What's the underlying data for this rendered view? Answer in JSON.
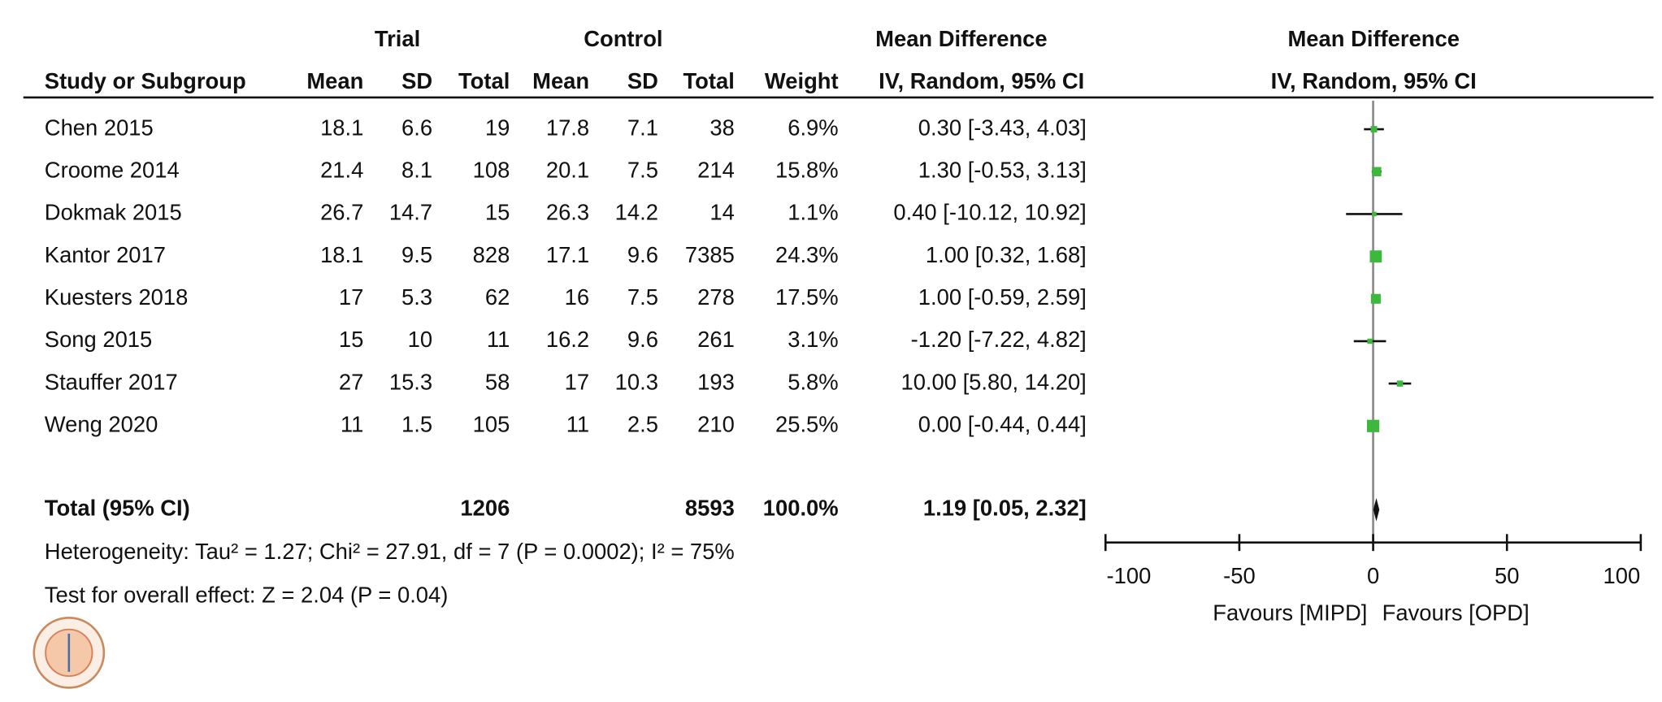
{
  "chart_data": {
    "type": "forest",
    "group_headers": {
      "trial": "Trial",
      "control": "Control",
      "effect_table": "Mean Difference",
      "effect_plot": "Mean Difference"
    },
    "columns": [
      "Study or Subgroup",
      "Mean",
      "SD",
      "Total",
      "Mean",
      "SD",
      "Total",
      "Weight",
      "IV, Random, 95% CI"
    ],
    "plot_method": "IV, Random, 95% CI",
    "studies": [
      {
        "name": "Chen 2015",
        "trial_mean": 18.1,
        "trial_sd": 6.6,
        "trial_total": 19,
        "control_mean": 17.8,
        "control_sd": 7.1,
        "control_total": 38,
        "weight": 6.9,
        "weight_label": "6.9%",
        "md": 0.3,
        "ci": [
          -3.43,
          4.03
        ],
        "ci_label": "0.30 [-3.43, 4.03]"
      },
      {
        "name": "Croome 2014",
        "trial_mean": 21.4,
        "trial_sd": 8.1,
        "trial_total": 108,
        "control_mean": 20.1,
        "control_sd": 7.5,
        "control_total": 214,
        "weight": 15.8,
        "weight_label": "15.8%",
        "md": 1.3,
        "ci": [
          -0.53,
          3.13
        ],
        "ci_label": "1.30 [-0.53, 3.13]"
      },
      {
        "name": "Dokmak 2015",
        "trial_mean": 26.7,
        "trial_sd": 14.7,
        "trial_total": 15,
        "control_mean": 26.3,
        "control_sd": 14.2,
        "control_total": 14,
        "weight": 1.1,
        "weight_label": "1.1%",
        "md": 0.4,
        "ci": [
          -10.12,
          10.92
        ],
        "ci_label": "0.40 [-10.12, 10.92]"
      },
      {
        "name": "Kantor 2017",
        "trial_mean": 18.1,
        "trial_sd": 9.5,
        "trial_total": 828,
        "control_mean": 17.1,
        "control_sd": 9.6,
        "control_total": 7385,
        "weight": 24.3,
        "weight_label": "24.3%",
        "md": 1.0,
        "ci": [
          0.32,
          1.68
        ],
        "ci_label": "1.00 [0.32, 1.68]"
      },
      {
        "name": "Kuesters 2018",
        "trial_mean": 17,
        "trial_sd": 5.3,
        "trial_total": 62,
        "control_mean": 16,
        "control_sd": 7.5,
        "control_total": 278,
        "weight": 17.5,
        "weight_label": "17.5%",
        "md": 1.0,
        "ci": [
          -0.59,
          2.59
        ],
        "ci_label": "1.00 [-0.59, 2.59]"
      },
      {
        "name": "Song 2015",
        "trial_mean": 15,
        "trial_sd": 10,
        "trial_total": 11,
        "control_mean": 16.2,
        "control_sd": 9.6,
        "control_total": 261,
        "weight": 3.1,
        "weight_label": "3.1%",
        "md": -1.2,
        "ci": [
          -7.22,
          4.82
        ],
        "ci_label": "-1.20 [-7.22, 4.82]"
      },
      {
        "name": "Stauffer 2017",
        "trial_mean": 27,
        "trial_sd": 15.3,
        "trial_total": 58,
        "control_mean": 17,
        "control_sd": 10.3,
        "control_total": 193,
        "weight": 5.8,
        "weight_label": "5.8%",
        "md": 10.0,
        "ci": [
          5.8,
          14.2
        ],
        "ci_label": "10.00 [5.80, 14.20]"
      },
      {
        "name": "Weng 2020",
        "trial_mean": 11,
        "trial_sd": 1.5,
        "trial_total": 105,
        "control_mean": 11,
        "control_sd": 2.5,
        "control_total": 210,
        "weight": 25.5,
        "weight_label": "25.5%",
        "md": 0.0,
        "ci": [
          -0.44,
          0.44
        ],
        "ci_label": "0.00 [-0.44, 0.44]"
      }
    ],
    "total": {
      "name": "Total (95% CI)",
      "trial_total": 1206,
      "control_total": 8593,
      "weight": 100.0,
      "weight_label": "100.0%",
      "md": 1.19,
      "ci": [
        0.05,
        2.32
      ],
      "ci_label": "1.19 [0.05, 2.32]"
    },
    "heterogeneity": "Heterogeneity: Tau² = 1.27; Chi² = 27.91, df = 7 (P = 0.0002); I² = 75%",
    "overall_effect": "Test for overall effect: Z = 2.04 (P = 0.04)",
    "xlim": [
      -100,
      100
    ],
    "xticks": [
      -100,
      -50,
      0,
      50,
      100
    ],
    "favours_left": "Favours [MIPD]",
    "favours_right": "Favours [OPD]",
    "square_color": "#3cb83c"
  }
}
